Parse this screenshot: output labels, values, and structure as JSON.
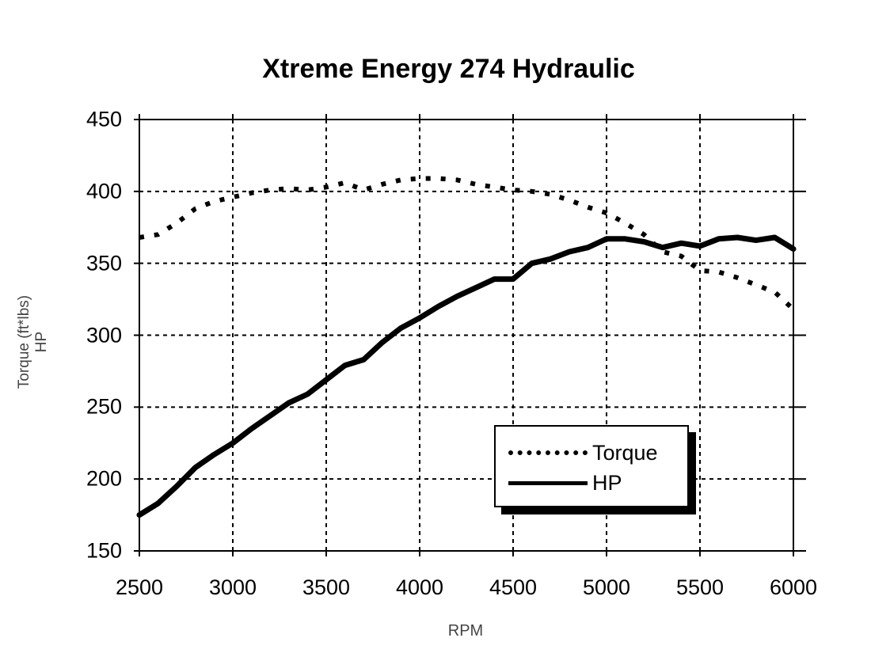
{
  "chart_data": {
    "type": "line",
    "title": "Xtreme Energy 274 Hydraulic",
    "xlabel": "RPM",
    "ylabel_lines": [
      "Torque  (ft*lbs)",
      "HP"
    ],
    "xlim": [
      2500,
      6000
    ],
    "ylim": [
      150,
      450
    ],
    "x_ticks": [
      2500,
      3000,
      3500,
      4000,
      4500,
      5000,
      5500,
      6000
    ],
    "y_ticks": [
      450,
      400,
      350,
      300,
      250,
      200,
      150
    ],
    "grid": true,
    "legend_position": "lower-right",
    "x": [
      2500,
      2600,
      2700,
      2800,
      2900,
      3000,
      3100,
      3200,
      3300,
      3400,
      3500,
      3600,
      3700,
      3800,
      3900,
      4000,
      4100,
      4200,
      4300,
      4400,
      4500,
      4600,
      4700,
      4800,
      4900,
      5000,
      5100,
      5200,
      5300,
      5400,
      5500,
      5600,
      5700,
      5800,
      5900,
      6000
    ],
    "series": [
      {
        "name": "Torque",
        "style": "dotted",
        "values": [
          368,
          370,
          378,
          388,
          393,
          396,
          399,
          401,
          402,
          401,
          403,
          406,
          401,
          405,
          408,
          409,
          409,
          408,
          405,
          403,
          401,
          400,
          398,
          394,
          389,
          385,
          378,
          370,
          358,
          355,
          345,
          344,
          340,
          335,
          330,
          318
        ]
      },
      {
        "name": "HP",
        "style": "solid",
        "values": [
          175,
          183,
          195,
          208,
          217,
          225,
          235,
          244,
          253,
          259,
          269,
          279,
          283,
          295,
          305,
          312,
          320,
          327,
          333,
          339,
          339,
          350,
          353,
          358,
          361,
          367,
          367,
          365,
          361,
          364,
          362,
          367,
          368,
          366,
          368,
          360
        ]
      }
    ]
  }
}
